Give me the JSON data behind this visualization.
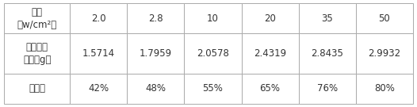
{
  "row_headers": [
    "声强\n（w/cm²）",
    "硫磺产出\n质量（g）",
    "萃硫率"
  ],
  "col_values": [
    [
      "2.0",
      "2.8",
      "10",
      "20",
      "35",
      "50"
    ],
    [
      "1.5714",
      "1.7959",
      "2.0578",
      "2.4319",
      "2.8435",
      "2.9932"
    ],
    [
      "42%",
      "48%",
      "55%",
      "65%",
      "76%",
      "80%"
    ]
  ],
  "border_color": "#aaaaaa",
  "text_color": "#333333",
  "bg_color": "#ffffff",
  "font_size": 8.5
}
